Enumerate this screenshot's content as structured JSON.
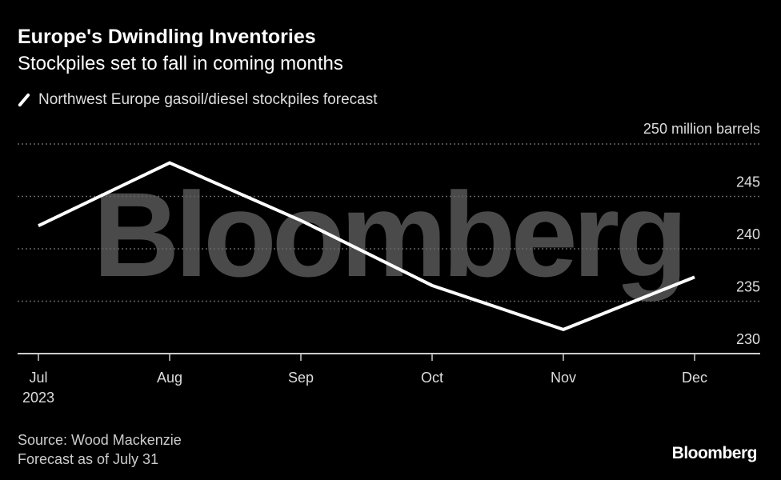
{
  "header": {
    "title": "Europe's Dwindling Inventories",
    "subtitle": "Stockpiles set to fall in coming months"
  },
  "footer": {
    "source": "Source: Wood Mackenzie",
    "note": "Forecast as of July 31",
    "brand": "Bloomberg"
  },
  "watermark": "Bloomberg",
  "chart_data": {
    "type": "line",
    "title": "Europe's Dwindling Inventories",
    "subtitle": "Stockpiles set to fall in coming months",
    "categories": [
      "Jul",
      "Aug",
      "Sep",
      "Oct",
      "Nov",
      "Dec"
    ],
    "category_sublabels": [
      "2023",
      "",
      "",
      "",
      "",
      ""
    ],
    "series": [
      {
        "name": "Northwest Europe gasoil/diesel stockpiles forecast",
        "color": "#ffffff",
        "values": [
          242.2,
          248.2,
          242.7,
          236.5,
          232.3,
          237.3
        ]
      }
    ],
    "ylabel": "million barrels",
    "ylim": [
      230,
      250
    ],
    "yticks": [
      230,
      235,
      240,
      245,
      250
    ],
    "y_axis_side": "right",
    "grid": true,
    "legend": "top-left",
    "colors": {
      "background": "#000000",
      "line": "#ffffff",
      "grid": "#666666",
      "watermark": "#4a4a4a"
    }
  }
}
